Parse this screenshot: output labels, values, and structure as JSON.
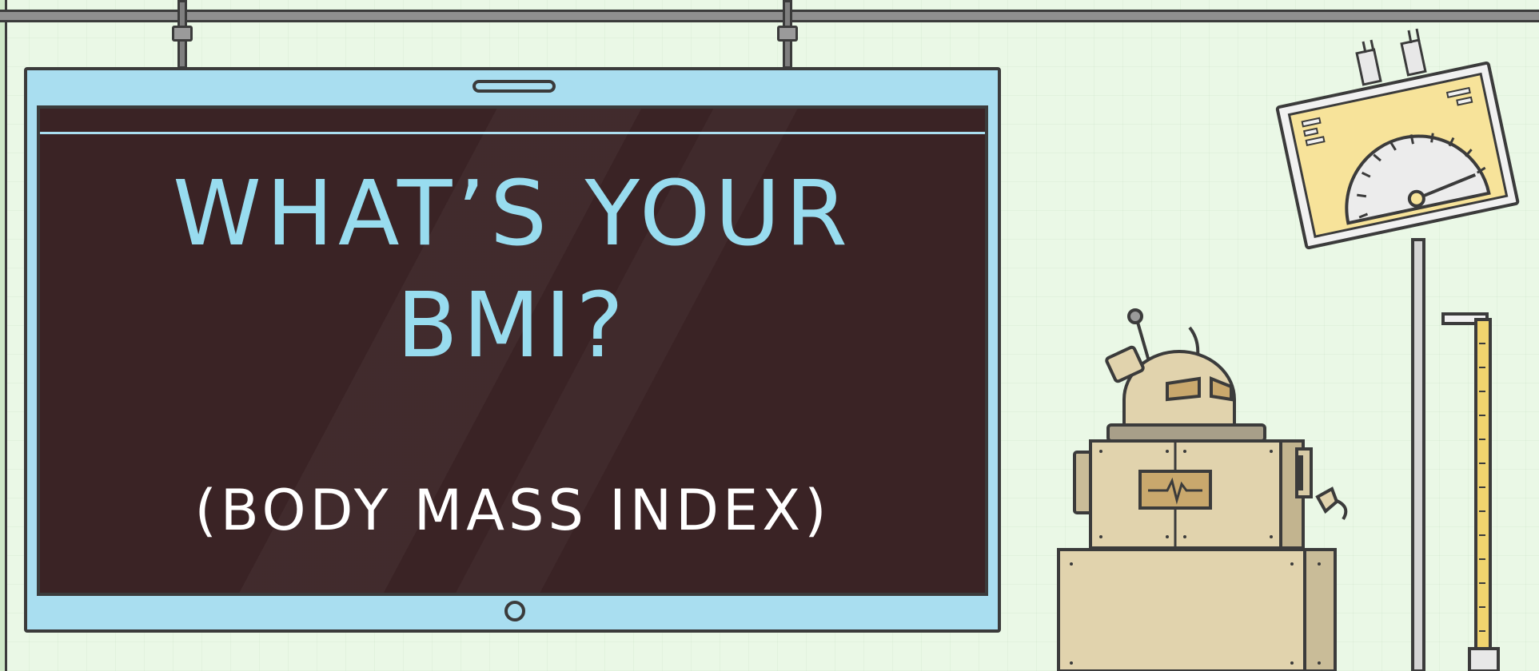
{
  "headline": {
    "line1": "WHAT’S YOUR",
    "line2": "BMI?"
  },
  "subheadline": "(BODY MASS INDEX)",
  "colors": {
    "background": "#eaf8e6",
    "monitor_frame": "#a9def0",
    "screen": "#3a2325",
    "headline_text": "#98dcef",
    "subheadline_text": "#ffffff",
    "robot_body": "#e1d3ad",
    "gauge_panel": "#f7e39a"
  },
  "icons": [
    "monitor-icon",
    "robot-icon",
    "scale-gauge-icon",
    "height-ruler-icon"
  ]
}
